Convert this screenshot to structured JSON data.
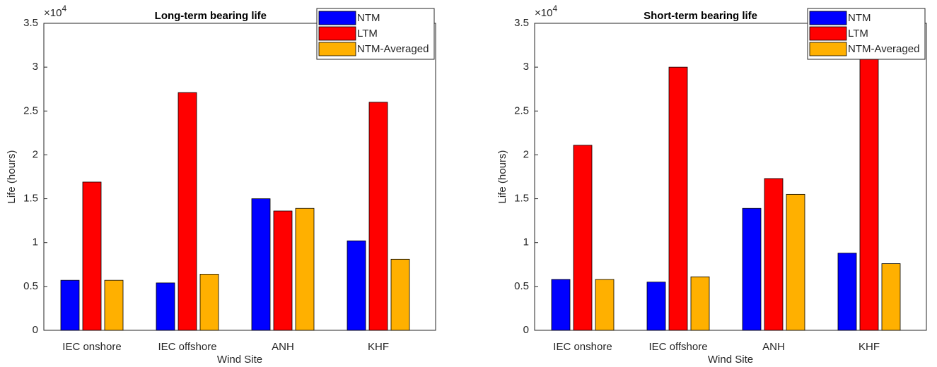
{
  "chart_data": [
    {
      "type": "bar",
      "title": "Long-term bearing life",
      "x_label": "Wind Site",
      "y_label": "Life (hours)",
      "axis_multiplier": "×10",
      "axis_multiplier_exp": "4",
      "categories": [
        "IEC onshore",
        "IEC offshore",
        "ANH",
        "KHF"
      ],
      "series": [
        {
          "name": "NTM",
          "color": "#0000ff",
          "values": [
            0.57,
            0.54,
            1.5,
            1.02
          ]
        },
        {
          "name": "LTM",
          "color": "#ff0000",
          "values": [
            1.69,
            2.71,
            1.36,
            2.6
          ]
        },
        {
          "name": "NTM-Averaged",
          "color": "#ffb000",
          "values": [
            0.57,
            0.64,
            1.39,
            0.81
          ]
        }
      ],
      "ylim": [
        0,
        3.5
      ],
      "yticks": [
        0,
        0.5,
        1,
        1.5,
        2,
        2.5,
        3,
        3.5
      ],
      "legend": "top-right"
    },
    {
      "type": "bar",
      "title": "Short-term bearing life",
      "x_label": "Wind Site",
      "y_label": "Life (hours)",
      "axis_multiplier": "×10",
      "axis_multiplier_exp": "4",
      "categories": [
        "IEC onshore",
        "IEC offshore",
        "ANH",
        "KHF"
      ],
      "series": [
        {
          "name": "NTM",
          "color": "#0000ff",
          "values": [
            0.58,
            0.55,
            1.39,
            0.88
          ]
        },
        {
          "name": "LTM",
          "color": "#ff0000",
          "values": [
            2.11,
            3.0,
            1.73,
            3.1
          ]
        },
        {
          "name": "NTM-Averaged",
          "color": "#ffb000",
          "values": [
            0.58,
            0.61,
            1.55,
            0.76
          ]
        }
      ],
      "ylim": [
        0,
        3.5
      ],
      "yticks": [
        0,
        0.5,
        1,
        1.5,
        2,
        2.5,
        3,
        3.5
      ],
      "legend": "top-right"
    }
  ]
}
